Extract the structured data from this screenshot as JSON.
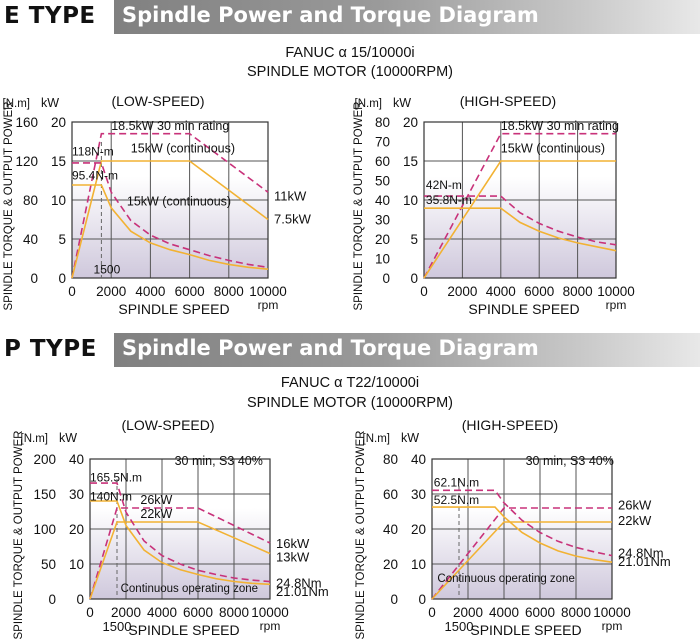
{
  "sections": [
    {
      "type_label": "E TYPE",
      "banner": "Spindle Power and Torque Diagram",
      "model": "FANUC α 15/10000i",
      "motor": "SPINDLE MOTOR (10000RPM)"
    },
    {
      "type_label": "P TYPE",
      "banner": "Spindle Power and Torque Diagram",
      "model": "FANUC α T22/10000i",
      "motor": "SPINDLE MOTOR (10000RPM)"
    }
  ],
  "colors": {
    "power_curve": "#f2b233",
    "torque_curve": "#c8327a",
    "grid": "#555555",
    "plot_bg_top": "#ffffff",
    "plot_bg_bottom": "#cfc8dc"
  },
  "chart_data": [
    {
      "type": "line",
      "title": "(LOW-SPEED)",
      "xlabel": "SPINDLE SPEED",
      "x_unit": "rpm",
      "ylabel": "SPINDLE TORQUE & OUTPUT POWER",
      "y_left_unit": "[N.m]",
      "y_right_unit": "kW",
      "xlim": [
        0,
        10000
      ],
      "y_torque_lim": [
        0,
        160
      ],
      "y_power_lim": [
        0,
        20
      ],
      "x_ticks": [
        "0",
        "2000",
        "4000",
        "6000",
        "8000",
        "10000"
      ],
      "torque_ticks": [
        "0",
        "40",
        "80",
        "120",
        "160"
      ],
      "power_ticks": [
        "0",
        "5",
        "10",
        "15",
        "20"
      ],
      "grid": true,
      "series": [
        {
          "axis": "power",
          "style": "dashed",
          "points": [
            [
              0,
              0
            ],
            [
              1500,
              18.5
            ],
            [
              6000,
              18.5
            ],
            [
              10000,
              11
            ]
          ]
        },
        {
          "axis": "power",
          "style": "solid",
          "points": [
            [
              0,
              0
            ],
            [
              1500,
              15
            ],
            [
              6000,
              15
            ],
            [
              10000,
              7.5
            ]
          ]
        },
        {
          "axis": "torque",
          "style": "dashed",
          "points": [
            [
              0,
              118
            ],
            [
              1500,
              118
            ],
            [
              2000,
              88
            ],
            [
              3000,
              59
            ],
            [
              4000,
              44
            ],
            [
              5000,
              35
            ],
            [
              6000,
              29
            ],
            [
              7000,
              23
            ],
            [
              8000,
              18
            ],
            [
              9000,
              14
            ],
            [
              10000,
              11
            ]
          ]
        },
        {
          "axis": "torque",
          "style": "solid",
          "points": [
            [
              0,
              95.4
            ],
            [
              1500,
              95.4
            ],
            [
              2000,
              72
            ],
            [
              3000,
              48
            ],
            [
              4000,
              36
            ],
            [
              5000,
              29
            ],
            [
              6000,
              24
            ],
            [
              7000,
              18
            ],
            [
              8000,
              14
            ],
            [
              9000,
              11
            ],
            [
              10000,
              9
            ]
          ]
        }
      ],
      "labels": [
        {
          "text": "18.5kW 30 min rating",
          "x": 2000,
          "axis": "power",
          "y": 19,
          "size": 12.5
        },
        {
          "text": "15kW (continuous)",
          "x": 3000,
          "axis": "power",
          "y": 16.1,
          "size": 12.5
        },
        {
          "text": "118N-m",
          "x": 0,
          "axis": "power",
          "y": 15.7,
          "size": 12
        },
        {
          "text": "95.4N-m",
          "x": 0,
          "axis": "power",
          "y": 12.6,
          "size": 12
        },
        {
          "text": "15kW (continuous)",
          "x": 2800,
          "axis": "power",
          "y": 9.3,
          "size": 12.5
        },
        {
          "text": "1500",
          "x": 1100,
          "axis": "power",
          "y": 0.6,
          "size": 12
        }
      ],
      "end_labels": [
        {
          "text": "11kW",
          "axis": "power",
          "y": 10.6,
          "dy": 0
        },
        {
          "text": "7.5kW",
          "axis": "power",
          "y": 7.6,
          "dy": 0
        }
      ],
      "guide_x": 1500
    },
    {
      "type": "line",
      "title": "(HIGH-SPEED)",
      "xlabel": "SPINDLE SPEED",
      "x_unit": "rpm",
      "ylabel": "SPINDLE TORQUE & OUTPUT POWER",
      "y_left_unit": "[N.m]",
      "y_right_unit": "kW",
      "xlim": [
        0,
        10000
      ],
      "y_torque_lim": [
        0,
        80
      ],
      "y_power_lim": [
        0,
        20
      ],
      "x_ticks": [
        "0",
        "2000",
        "4000",
        "6000",
        "8000",
        "10000"
      ],
      "torque_ticks": [
        "0",
        "10",
        "20",
        "30",
        "40",
        "50",
        "60",
        "70",
        "80"
      ],
      "power_ticks": [
        "0",
        "5",
        "10",
        "15",
        "20"
      ],
      "grid": true,
      "series": [
        {
          "axis": "power",
          "style": "dashed",
          "points": [
            [
              0,
              0
            ],
            [
              4000,
              18.5
            ],
            [
              10000,
              18.5
            ]
          ]
        },
        {
          "axis": "power",
          "style": "solid",
          "points": [
            [
              0,
              0
            ],
            [
              4000,
              15
            ],
            [
              10000,
              15
            ]
          ]
        },
        {
          "axis": "torque",
          "style": "dashed",
          "points": [
            [
              0,
              42
            ],
            [
              3000,
              42
            ],
            [
              4000,
              42
            ],
            [
              5000,
              33.5
            ],
            [
              6000,
              28
            ],
            [
              7000,
              24
            ],
            [
              8000,
              21
            ],
            [
              9000,
              18.5
            ],
            [
              10000,
              17
            ]
          ]
        },
        {
          "axis": "torque",
          "style": "solid",
          "points": [
            [
              0,
              35.8
            ],
            [
              3000,
              35.8
            ],
            [
              4000,
              35.8
            ],
            [
              5000,
              28.5
            ],
            [
              6000,
              24
            ],
            [
              7000,
              20.5
            ],
            [
              8000,
              18
            ],
            [
              9000,
              16
            ],
            [
              10000,
              14
            ]
          ]
        }
      ],
      "labels": [
        {
          "text": "18.5kW 30 min rating",
          "x": 4000,
          "axis": "power",
          "y": 19,
          "size": 12.5
        },
        {
          "text": "15kW (continuous)",
          "x": 4000,
          "axis": "power",
          "y": 16.1,
          "size": 12.5
        },
        {
          "text": "42N-m",
          "x": 100,
          "axis": "power",
          "y": 11.4,
          "size": 12
        },
        {
          "text": "35.8N-m",
          "x": 100,
          "axis": "power",
          "y": 9.5,
          "size": 12
        }
      ],
      "end_labels": [],
      "guide_x": null
    },
    {
      "type": "line",
      "title": "(LOW-SPEED)",
      "xlabel": "SPINDLE SPEED",
      "x_unit": "rpm",
      "ylabel": "SPINDLE TORQUE & OUTPUT POWER",
      "y_left_unit": "[N.m]",
      "y_right_unit": "kW",
      "xlim": [
        0,
        10000
      ],
      "y_torque_lim": [
        0,
        200
      ],
      "y_power_lim": [
        0,
        40
      ],
      "x_ticks": [
        "0",
        "2000",
        "4000",
        "6000",
        "8000",
        "10000"
      ],
      "torque_ticks": [
        "0",
        "50",
        "100",
        "150",
        "200"
      ],
      "power_ticks": [
        "0",
        "10",
        "20",
        "30",
        "40"
      ],
      "grid": true,
      "series": [
        {
          "axis": "power",
          "style": "dashed",
          "points": [
            [
              0,
              0
            ],
            [
              1500,
              26
            ],
            [
              6000,
              26
            ],
            [
              10000,
              16
            ]
          ]
        },
        {
          "axis": "power",
          "style": "solid",
          "points": [
            [
              0,
              0
            ],
            [
              1500,
              22
            ],
            [
              6000,
              22
            ],
            [
              10000,
              13
            ]
          ]
        },
        {
          "axis": "torque",
          "style": "dashed",
          "points": [
            [
              0,
              165.5
            ],
            [
              1500,
              165.5
            ],
            [
              2000,
              124
            ],
            [
              3000,
              83
            ],
            [
              4000,
              62
            ],
            [
              5000,
              50
            ],
            [
              6000,
              41
            ],
            [
              7000,
              35
            ],
            [
              8000,
              30
            ],
            [
              9000,
              27
            ],
            [
              10000,
              24.8
            ]
          ]
        },
        {
          "axis": "torque",
          "style": "solid",
          "points": [
            [
              0,
              140
            ],
            [
              1500,
              140
            ],
            [
              2000,
              105
            ],
            [
              3000,
              70
            ],
            [
              4000,
              52
            ],
            [
              5000,
              42
            ],
            [
              6000,
              35
            ],
            [
              7000,
              29
            ],
            [
              8000,
              25
            ],
            [
              9000,
              22.5
            ],
            [
              10000,
              21.01
            ]
          ]
        }
      ],
      "labels": [
        {
          "text": "30 min, S3 40%",
          "x": 4700,
          "axis": "power",
          "y": 38.3,
          "size": 12.5
        },
        {
          "text": "165.5N.m",
          "x": 0,
          "axis": "power",
          "y": 33.6,
          "size": 12
        },
        {
          "text": "140N.m",
          "x": 0,
          "axis": "power",
          "y": 28.2,
          "size": 12
        },
        {
          "text": "26kW",
          "x": 2800,
          "axis": "power",
          "y": 27.2,
          "size": 12.5
        },
        {
          "text": "22kW",
          "x": 2800,
          "axis": "power",
          "y": 23.2,
          "size": 12.5
        },
        {
          "text": "Continuous operating zone",
          "x": 1700,
          "axis": "power",
          "y": 2.0,
          "size": 11.5
        }
      ],
      "end_labels": [
        {
          "text": "16kW",
          "axis": "power",
          "y": 16,
          "dy": 0
        },
        {
          "text": "13kW",
          "axis": "power",
          "y": 12.1,
          "dy": 0
        },
        {
          "text": "24.8Nm",
          "axis": "power",
          "y": 4.7,
          "dy": 0
        },
        {
          "text": "21.01Nm",
          "axis": "power",
          "y": 2.3,
          "dy": 0
        }
      ],
      "guide_x": 1500,
      "x_extra_label": "1500"
    },
    {
      "type": "line",
      "title": "(HIGH-SPEED)",
      "xlabel": "SPINDLE SPEED",
      "x_unit": "rpm",
      "ylabel": "SPINDLE TORQUE & OUTPUT POWER",
      "y_left_unit": "[N.m]",
      "y_right_unit": "kW",
      "xlim": [
        0,
        10000
      ],
      "y_torque_lim": [
        0,
        80
      ],
      "y_power_lim": [
        0,
        40
      ],
      "x_ticks": [
        "0",
        "2000",
        "4000",
        "6000",
        "8000",
        "10000"
      ],
      "torque_ticks": [
        "0",
        "20",
        "40",
        "60",
        "80"
      ],
      "power_ticks": [
        "0",
        "10",
        "20",
        "30",
        "40"
      ],
      "grid": true,
      "series": [
        {
          "axis": "power",
          "style": "dashed",
          "points": [
            [
              0,
              0
            ],
            [
              4000,
              26
            ],
            [
              10000,
              26
            ]
          ]
        },
        {
          "axis": "power",
          "style": "solid",
          "points": [
            [
              0,
              0
            ],
            [
              4000,
              22
            ],
            [
              10000,
              22
            ]
          ]
        },
        {
          "axis": "torque",
          "style": "dashed",
          "points": [
            [
              0,
              62.1
            ],
            [
              3500,
              62.1
            ],
            [
              4000,
              55
            ],
            [
              5000,
              45
            ],
            [
              6000,
              38
            ],
            [
              7000,
              33
            ],
            [
              8000,
              29.5
            ],
            [
              9000,
              27
            ],
            [
              10000,
              24.8
            ]
          ]
        },
        {
          "axis": "torque",
          "style": "solid",
          "points": [
            [
              0,
              52.5
            ],
            [
              3500,
              52.5
            ],
            [
              4000,
              47
            ],
            [
              5000,
              38
            ],
            [
              6000,
              32
            ],
            [
              7000,
              27.5
            ],
            [
              8000,
              24.5
            ],
            [
              9000,
              22.5
            ],
            [
              10000,
              21.01
            ]
          ]
        }
      ],
      "labels": [
        {
          "text": "30 min, S3 40%",
          "x": 5200,
          "axis": "power",
          "y": 38.3,
          "size": 12.5
        },
        {
          "text": "62.1N.m",
          "x": 100,
          "axis": "power",
          "y": 32.2,
          "size": 12
        },
        {
          "text": "52.5N.m",
          "x": 100,
          "axis": "power",
          "y": 27.2,
          "size": 12
        },
        {
          "text": "Continuous operating zone",
          "x": 300,
          "axis": "power",
          "y": 4.8,
          "size": 11.5
        }
      ],
      "end_labels": [
        {
          "text": "26kW",
          "axis": "power",
          "y": 27,
          "dy": 0
        },
        {
          "text": "22kW",
          "axis": "power",
          "y": 22.6,
          "dy": 0
        },
        {
          "text": "24.8Nm",
          "axis": "power",
          "y": 13.3,
          "dy": 0
        },
        {
          "text": "21.01Nm",
          "axis": "power",
          "y": 10.9,
          "dy": 0
        }
      ],
      "guide_x": 1500,
      "x_extra_label": "1500"
    }
  ]
}
